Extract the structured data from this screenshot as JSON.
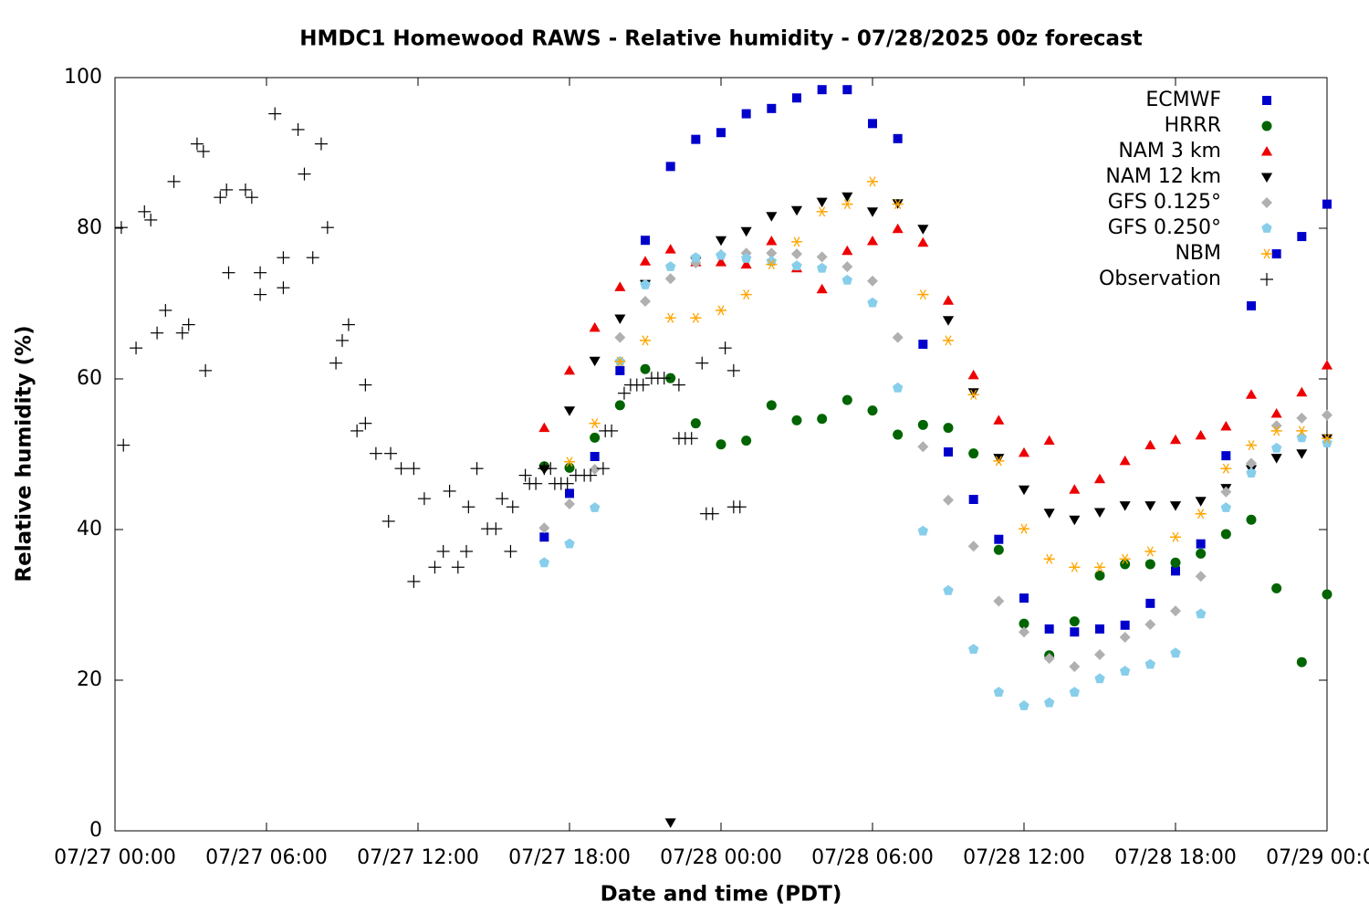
{
  "chart_data": {
    "type": "scatter",
    "title": "HMDC1 Homewood RAWS - Relative humidity - 07/28/2025 00z forecast",
    "xlabel": "Date and time (PDT)",
    "ylabel": "Relative humidity (%)",
    "xlim": [
      "07/27 00:00",
      "07/29 00:00"
    ],
    "xticks": [
      "07/27 00:00",
      "07/27 06:00",
      "07/27 12:00",
      "07/27 18:00",
      "07/28 00:00",
      "07/28 06:00",
      "07/28 12:00",
      "07/28 18:00",
      "07/29 00:00"
    ],
    "ylim": [
      0,
      100
    ],
    "yticks": [
      0,
      20,
      40,
      60,
      80,
      100
    ],
    "legend": "upper right",
    "x": [
      "07/27 17:00",
      "07/27 18:00",
      "07/27 19:00",
      "07/27 20:00",
      "07/27 21:00",
      "07/27 22:00",
      "07/27 23:00",
      "07/28 00:00",
      "07/28 01:00",
      "07/28 02:00",
      "07/28 03:00",
      "07/28 04:00",
      "07/28 05:00",
      "07/28 06:00",
      "07/28 07:00",
      "07/28 08:00",
      "07/28 09:00",
      "07/28 10:00",
      "07/28 11:00",
      "07/28 12:00",
      "07/28 13:00",
      "07/28 14:00",
      "07/28 15:00",
      "07/28 16:00",
      "07/28 17:00",
      "07/28 18:00",
      "07/28 19:00",
      "07/28 20:00",
      "07/28 21:00",
      "07/28 22:00",
      "07/28 23:00",
      "07/29 00:00"
    ],
    "series": [
      {
        "name": "ECMWF",
        "color": "#0000cc",
        "marker": "square",
        "values": [
          39.0,
          44.8,
          49.7,
          61.1,
          78.4,
          88.2,
          91.8,
          92.7,
          95.2,
          95.9,
          97.3,
          98.4,
          98.4,
          93.9,
          91.9,
          64.6,
          50.3,
          44.0,
          38.7,
          30.9,
          26.8,
          26.4,
          26.8,
          27.3,
          30.2,
          34.5,
          38.1,
          49.8,
          69.7,
          76.6,
          78.9,
          83.2
        ]
      },
      {
        "name": "HRRR",
        "color": "#006400",
        "marker": "circle",
        "values": [
          48.4,
          48.2,
          52.2,
          56.5,
          61.3,
          60.1,
          54.1,
          51.3,
          51.8,
          56.5,
          54.5,
          54.7,
          57.2,
          55.8,
          52.6,
          53.9,
          53.5,
          50.1,
          37.3,
          27.5,
          23.3,
          27.8,
          33.9,
          35.4,
          35.4,
          35.6,
          36.8,
          39.4,
          41.3,
          32.2,
          22.4,
          31.4
        ]
      },
      {
        "name": "NAM 3 km",
        "color": "#ee0000",
        "marker": "triangle-up",
        "values": [
          53.5,
          61.1,
          66.8,
          72.2,
          75.6,
          77.2,
          75.5,
          75.5,
          75.2,
          78.3,
          74.7,
          71.9,
          77.0,
          78.3,
          79.9,
          78.1,
          70.4,
          60.5,
          54.5,
          50.2,
          51.8,
          45.3,
          46.7,
          49.1,
          51.2,
          51.9,
          52.5,
          53.7,
          57.9,
          55.4,
          58.2,
          61.8
        ]
      },
      {
        "name": "NAM 12 km",
        "color": "#000000",
        "marker": "triangle-down",
        "values": [
          48.0,
          55.8,
          62.4,
          68.0,
          72.6,
          1.1,
          75.6,
          78.4,
          79.6,
          81.6,
          82.4,
          83.5,
          84.2,
          82.2,
          83.3,
          79.9,
          67.8,
          58.2,
          49.5,
          45.3,
          42.2,
          41.3,
          42.3,
          43.2,
          43.2,
          43.2,
          43.8,
          45.5,
          48.0,
          49.5,
          50.1,
          52.1
        ]
      },
      {
        "name": "GFS 0.125°",
        "color": "#b0b0b0",
        "marker": "diamond",
        "values": [
          40.2,
          43.4,
          48.0,
          65.5,
          70.3,
          73.3,
          75.4,
          76.5,
          76.7,
          76.7,
          76.6,
          76.2,
          74.9,
          73.0,
          65.5,
          51.0,
          43.9,
          37.8,
          30.5,
          26.4,
          22.9,
          21.8,
          23.4,
          25.7,
          27.4,
          29.2,
          33.8,
          45.0,
          48.8,
          53.8,
          54.8,
          55.2
        ]
      },
      {
        "name": "GFS 0.250°",
        "color": "#87ceeb",
        "marker": "pentagon",
        "values": [
          35.6,
          38.1,
          42.9,
          62.3,
          72.5,
          74.9,
          76.1,
          76.4,
          76.0,
          75.6,
          75.0,
          74.7,
          73.1,
          70.1,
          58.8,
          39.8,
          31.9,
          24.1,
          18.4,
          16.6,
          17.0,
          18.4,
          20.2,
          21.2,
          22.1,
          23.6,
          28.8,
          42.9,
          47.5,
          50.8,
          52.2,
          51.5
        ]
      },
      {
        "name": "NBM",
        "color": "#ffa500",
        "marker": "asterisk",
        "values": [
          null,
          49.0,
          54.1,
          62.3,
          65.1,
          68.1,
          68.1,
          69.1,
          71.2,
          75.2,
          78.2,
          82.2,
          83.2,
          86.2,
          83.2,
          71.2,
          65.1,
          57.9,
          49.1,
          40.1,
          36.1,
          35.0,
          35.0,
          36.1,
          37.1,
          39.0,
          42.1,
          48.1,
          51.2,
          53.1,
          53.1,
          52.1
        ]
      },
      {
        "name": "Observation",
        "color": "#000000",
        "marker": "plus",
        "x": [
          "07/27 00:15",
          "07/27 00:20",
          "07/27 00:50",
          "07/27 01:10",
          "07/27 01:25",
          "07/27 01:40",
          "07/27 02:00",
          "07/27 02:20",
          "07/27 02:40",
          "07/27 02:55",
          "07/27 03:15",
          "07/27 03:30",
          "07/27 03:35",
          "07/27 04:10",
          "07/27 04:25",
          "07/27 04:30",
          "07/27 05:10",
          "07/27 05:25",
          "07/27 05:45",
          "07/27 05:45",
          "07/27 06:20",
          "07/27 06:40",
          "07/27 06:40",
          "07/27 07:15",
          "07/27 07:30",
          "07/27 07:50",
          "07/27 08:10",
          "07/27 08:25",
          "07/27 08:45",
          "07/27 09:00",
          "07/27 09:15",
          "07/27 09:35",
          "07/27 09:55",
          "07/27 09:55",
          "07/27 10:20",
          "07/27 10:55",
          "07/27 10:50",
          "07/27 11:20",
          "07/27 11:50",
          "07/27 11:50",
          "07/27 12:15",
          "07/27 12:40",
          "07/27 13:00",
          "07/27 13:15",
          "07/27 13:35",
          "07/27 13:55",
          "07/27 14:00",
          "07/27 14:20",
          "07/27 14:45",
          "07/27 15:05",
          "07/27 15:20",
          "07/27 15:40",
          "07/27 15:45",
          "07/27 16:15",
          "07/27 16:25",
          "07/27 16:40",
          "07/27 17:00",
          "07/27 17:15",
          "07/27 17:25",
          "07/27 17:40",
          "07/27 17:55",
          "07/27 18:15",
          "07/27 18:35",
          "07/27 18:50",
          "07/27 19:20",
          "07/27 19:25",
          "07/27 19:40",
          "07/27 20:10",
          "07/27 20:25",
          "07/27 20:40",
          "07/27 20:55",
          "07/27 21:15",
          "07/27 21:30",
          "07/27 21:45",
          "07/27 22:20",
          "07/27 22:20",
          "07/27 22:35",
          "07/27 22:50",
          "07/27 23:15",
          "07/27 23:25",
          "07/27 23:40",
          "07/28 00:10",
          "07/28 00:30",
          "07/28 00:30",
          "07/28 00:45"
        ],
        "values": [
          80.1,
          51.2,
          64.1,
          82.2,
          81.1,
          66.1,
          69.1,
          86.2,
          66.1,
          67.2,
          91.2,
          90.2,
          61.1,
          84.1,
          85.1,
          74.1,
          85.1,
          84.1,
          74.1,
          71.2,
          95.2,
          72.1,
          76.1,
          93.1,
          87.2,
          76.1,
          91.2,
          80.1,
          62.1,
          65.1,
          67.2,
          53.1,
          54.1,
          59.2,
          50.1,
          50.1,
          41.1,
          48.1,
          48.1,
          33.1,
          44.1,
          35.0,
          37.1,
          45.1,
          35.0,
          37.1,
          43.0,
          48.1,
          40.1,
          40.1,
          44.1,
          37.1,
          43.0,
          47.2,
          46.1,
          46.1,
          48.1,
          48.1,
          46.1,
          46.1,
          46.1,
          47.2,
          47.2,
          47.2,
          48.1,
          53.1,
          53.1,
          58.1,
          59.2,
          59.2,
          59.2,
          60.1,
          60.1,
          60.1,
          59.2,
          52.1,
          52.1,
          52.1,
          62.1,
          42.1,
          42.1,
          64.1,
          61.1,
          43.0,
          43.0
        ]
      }
    ]
  }
}
